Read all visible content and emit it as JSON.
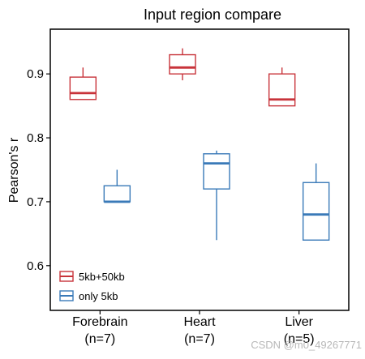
{
  "chart_data": {
    "type": "box",
    "title": "Input region compare",
    "xlabel": "",
    "ylabel": "Pearson's r",
    "ylim": [
      0.53,
      0.97
    ],
    "y_ticks": [
      "0.6",
      "0.7",
      "0.8",
      "0.9"
    ],
    "y_tick_values": [
      0.6,
      0.7,
      0.8,
      0.9
    ],
    "categories": [
      {
        "name": "Forebrain",
        "n": "(n=7)"
      },
      {
        "name": "Heart",
        "n": "(n=7)"
      },
      {
        "name": "Liver",
        "n": "(n=5)"
      }
    ],
    "series": [
      {
        "name": "5kb+50kb",
        "color": "#c8333a",
        "boxes": [
          {
            "min": 0.86,
            "q1": 0.86,
            "median": 0.87,
            "q3": 0.895,
            "max": 0.91
          },
          {
            "min": 0.89,
            "q1": 0.9,
            "median": 0.91,
            "q3": 0.93,
            "max": 0.94
          },
          {
            "min": 0.85,
            "q1": 0.85,
            "median": 0.86,
            "q3": 0.9,
            "max": 0.91
          }
        ]
      },
      {
        "name": "only 5kb",
        "color": "#3a7ab8",
        "boxes": [
          {
            "min": 0.7,
            "q1": 0.7,
            "median": 0.7,
            "q3": 0.725,
            "max": 0.75
          },
          {
            "min": 0.64,
            "q1": 0.72,
            "median": 0.76,
            "q3": 0.775,
            "max": 0.78
          },
          {
            "min": 0.64,
            "q1": 0.64,
            "median": 0.68,
            "q3": 0.73,
            "max": 0.76
          }
        ]
      }
    ],
    "legend_position": "bottom-left",
    "grid": false
  },
  "watermark": "CSDN @m0_49267771"
}
